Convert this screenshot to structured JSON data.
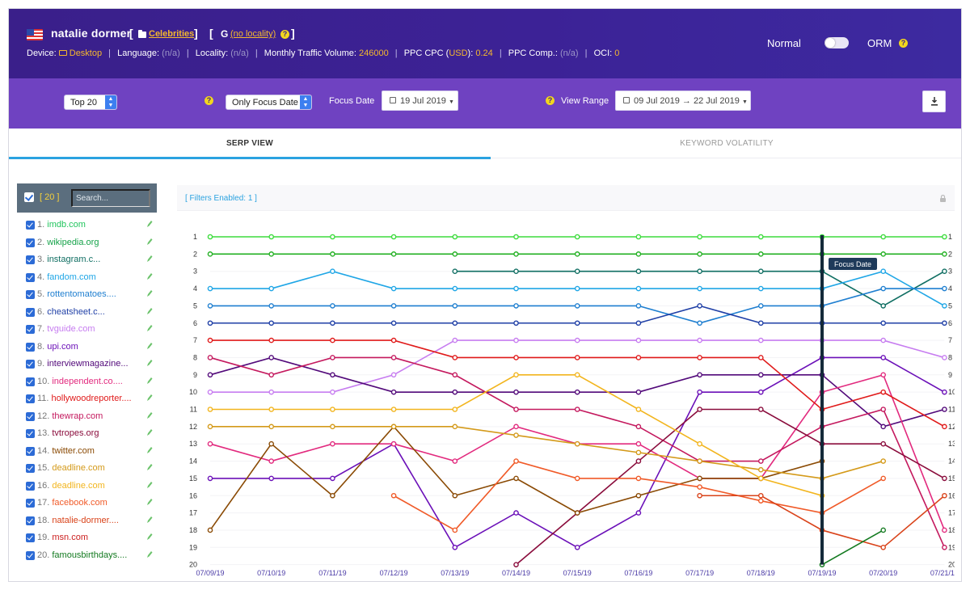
{
  "header": {
    "keyword": "natalie dormer",
    "category": "Celebrities",
    "locality": "(no locality)",
    "device_label": "Device:",
    "device": "Desktop",
    "language_label": "Language:",
    "language": "(n/a)",
    "locality_label": "Locality:",
    "locality_value": "(n/a)",
    "traffic_label": "Monthly Traffic Volume:",
    "traffic": "246000",
    "cpc_label_a": "PPC CPC (",
    "cpc_currency": "USD",
    "cpc_label_b": "):",
    "cpc": "0.24",
    "comp_label": "PPC Comp.:",
    "comp": "(n/a)",
    "oci_label": "OCI:",
    "oci": "0",
    "mode_left": "Normal",
    "mode_right": "ORM",
    "flag_icon": "us-flag-icon",
    "colors": {
      "header_bg": "#3a1f8a",
      "toolbar_bg": "#6f42c1",
      "accent": "#f5b82e"
    }
  },
  "toolbar": {
    "top_select": "Top 20",
    "focus_select": "Only Focus Date",
    "focus_label": "Focus Date",
    "focus_date": "19 Jul 2019",
    "range_label": "View Range",
    "range": "09 Jul 2019 → 22 Jul 2019"
  },
  "tabs": [
    {
      "label": "SERP VIEW",
      "active": true
    },
    {
      "label": "KEYWORD VOLATILITY",
      "active": false
    }
  ],
  "sidebar": {
    "count": "[ 20 ]",
    "search_placeholder": "Search...",
    "items": [
      {
        "n": "1.",
        "domain": "imdb.com",
        "color": "#22c55e"
      },
      {
        "n": "2.",
        "domain": "wikipedia.org",
        "color": "#16a34a"
      },
      {
        "n": "3.",
        "domain": "instagram.c...",
        "color": "#0f6e62"
      },
      {
        "n": "4.",
        "domain": "fandom.com",
        "color": "#1fa6e6"
      },
      {
        "n": "5.",
        "domain": "rottentomatoes....",
        "color": "#1f7fd0"
      },
      {
        "n": "6.",
        "domain": "cheatsheet.c...",
        "color": "#1f3fa6"
      },
      {
        "n": "7.",
        "domain": "tvguide.com",
        "color": "#c77df0"
      },
      {
        "n": "8.",
        "domain": "upi.com",
        "color": "#6b10b8"
      },
      {
        "n": "9.",
        "domain": "interviewmagazine...",
        "color": "#52097a"
      },
      {
        "n": "10.",
        "domain": "independent.co....",
        "color": "#e22a7e"
      },
      {
        "n": "11.",
        "domain": "hollywoodreporter....",
        "color": "#e01a1a"
      },
      {
        "n": "12.",
        "domain": "thewrap.com",
        "color": "#c4195e"
      },
      {
        "n": "13.",
        "domain": "tvtropes.org",
        "color": "#8a0c3c"
      },
      {
        "n": "14.",
        "domain": "twitter.com",
        "color": "#8a4a04"
      },
      {
        "n": "15.",
        "domain": "deadline.com",
        "color": "#d49a1a"
      },
      {
        "n": "16.",
        "domain": "deadline.com",
        "color": "#f2b51e"
      },
      {
        "n": "17.",
        "domain": "facebook.com",
        "color": "#f05a28"
      },
      {
        "n": "18.",
        "domain": "natalie-dormer....",
        "color": "#d9431a"
      },
      {
        "n": "19.",
        "domain": "msn.com",
        "color": "#cc2020"
      },
      {
        "n": "20.",
        "domain": "famousbirthdays....",
        "color": "#137a20"
      }
    ]
  },
  "chart_top": {
    "filters": "[ Filters Enabled: 1 ]"
  },
  "chart_data": {
    "type": "line",
    "x": [
      "07/09/19",
      "07/10/19",
      "07/11/19",
      "07/12/19",
      "07/13/19",
      "07/14/19",
      "07/15/19",
      "07/16/19",
      "07/17/19",
      "07/18/19",
      "07/19/19",
      "07/20/19",
      "07/21/19"
    ],
    "ylim": [
      1,
      20
    ],
    "y_inverted": true,
    "yticks": [
      1,
      2,
      3,
      4,
      5,
      6,
      7,
      8,
      9,
      10,
      11,
      12,
      13,
      14,
      15,
      16,
      17,
      18,
      19,
      20
    ],
    "focus_label": "Focus Date",
    "focus_index": 10,
    "series": [
      {
        "name": "imdb.com",
        "color": "#3ddc3d",
        "values": [
          1,
          1,
          1,
          1,
          1,
          1,
          1,
          1,
          1,
          1,
          1,
          1,
          1
        ]
      },
      {
        "name": "wikipedia.org",
        "color": "#22b022",
        "values": [
          2,
          2,
          2,
          2,
          2,
          2,
          2,
          2,
          2,
          2,
          2,
          2,
          2
        ]
      },
      {
        "name": "instagram.c...",
        "color": "#0f6e62",
        "values": [
          null,
          null,
          null,
          null,
          3,
          3,
          3,
          3,
          3,
          3,
          3,
          5,
          3
        ]
      },
      {
        "name": "fandom.com",
        "color": "#1fa6e6",
        "values": [
          4,
          4,
          3,
          4,
          4,
          4,
          4,
          4,
          4,
          4,
          4,
          3,
          5
        ]
      },
      {
        "name": "rottentomatoes....",
        "color": "#1f7fd0",
        "values": [
          5,
          5,
          5,
          5,
          5,
          5,
          5,
          5,
          6,
          5,
          5,
          4,
          4
        ]
      },
      {
        "name": "cheatsheet.c...",
        "color": "#1f3fa6",
        "values": [
          6,
          6,
          6,
          6,
          6,
          6,
          6,
          6,
          5,
          6,
          6,
          6,
          6
        ]
      },
      {
        "name": "tvguide.com",
        "color": "#c77df0",
        "values": [
          10,
          10,
          10,
          9,
          7,
          7,
          7,
          7,
          7,
          7,
          7,
          7,
          8
        ]
      },
      {
        "name": "upi.com",
        "color": "#6b10b8",
        "values": [
          15,
          15,
          15,
          13,
          19,
          17,
          19,
          17,
          10,
          10,
          8,
          8,
          10
        ]
      },
      {
        "name": "interviewmagazine...",
        "color": "#52097a",
        "values": [
          9,
          8,
          9,
          10,
          10,
          10,
          10,
          10,
          9,
          9,
          9,
          12,
          11
        ]
      },
      {
        "name": "independent.co....",
        "color": "#e22a7e",
        "values": [
          13,
          14,
          13,
          13,
          14,
          12,
          13,
          13,
          15,
          15,
          10,
          9,
          18
        ]
      },
      {
        "name": "hollywoodreporter....",
        "color": "#e01a1a",
        "values": [
          7,
          7,
          7,
          7,
          8,
          8,
          8,
          8,
          8,
          8,
          11,
          10,
          12
        ]
      },
      {
        "name": "thewrap.com",
        "color": "#c4195e",
        "values": [
          8,
          9,
          8,
          8,
          9,
          11,
          11,
          12,
          14,
          14,
          12,
          11,
          19
        ]
      },
      {
        "name": "tvtropes.org",
        "color": "#8a0c3c",
        "values": [
          null,
          null,
          null,
          null,
          null,
          20,
          17,
          14,
          11,
          11,
          13,
          13,
          15
        ]
      },
      {
        "name": "twitter.com",
        "color": "#8a4a04",
        "values": [
          18,
          13,
          16,
          12,
          16,
          15,
          17,
          16,
          15,
          15,
          14,
          null,
          null
        ]
      },
      {
        "name": "deadline.com",
        "color": "#d49a1a",
        "values": [
          12,
          12,
          12,
          12,
          12,
          12.5,
          13,
          13.5,
          14,
          14.5,
          15,
          14,
          null
        ]
      },
      {
        "name": "deadline.com",
        "color": "#f2b51e",
        "values": [
          11,
          11,
          11,
          11,
          11,
          9,
          9,
          11,
          13,
          15,
          16,
          null,
          null
        ]
      },
      {
        "name": "facebook.com",
        "color": "#f05a28",
        "values": [
          null,
          null,
          null,
          16,
          18,
          14,
          15,
          15,
          15.5,
          16.3,
          17,
          15,
          null
        ]
      },
      {
        "name": "natalie-dormer....",
        "color": "#d9431a",
        "values": [
          null,
          null,
          null,
          null,
          null,
          null,
          null,
          null,
          16,
          16,
          18,
          19,
          16
        ]
      },
      {
        "name": "msn.com",
        "color": "#cc2020",
        "values": [
          null,
          null,
          null,
          null,
          null,
          null,
          null,
          null,
          null,
          null,
          null,
          null,
          null
        ]
      },
      {
        "name": "famousbirthdays....",
        "color": "#137a20",
        "values": [
          null,
          null,
          null,
          null,
          null,
          null,
          null,
          null,
          null,
          null,
          20,
          18,
          null
        ]
      }
    ]
  }
}
